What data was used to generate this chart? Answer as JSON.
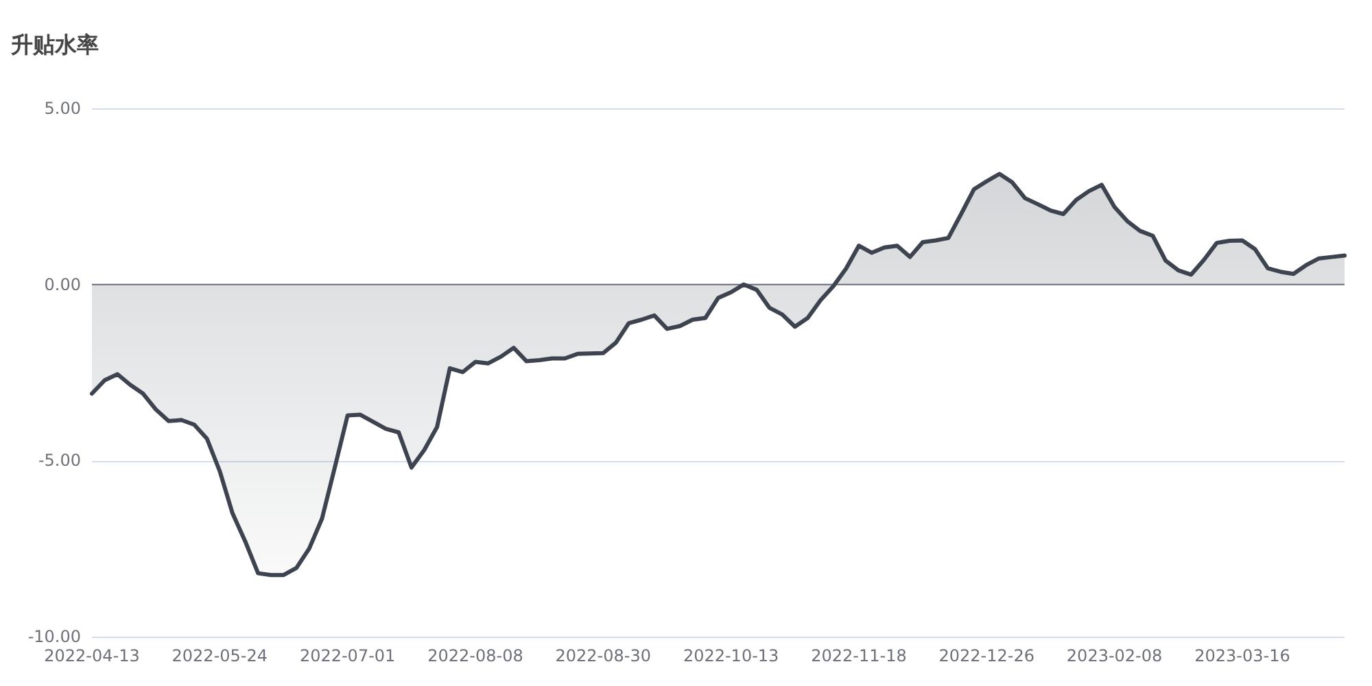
{
  "chart_data": {
    "type": "area",
    "title": "升贴水率",
    "categories": [
      "2022-04-13",
      null,
      null,
      null,
      null,
      null,
      null,
      null,
      null,
      null,
      "2022-05-24",
      null,
      null,
      null,
      null,
      null,
      null,
      null,
      null,
      null,
      "2022-07-01",
      null,
      null,
      null,
      null,
      null,
      null,
      null,
      null,
      null,
      "2022-08-08",
      null,
      null,
      null,
      null,
      null,
      null,
      null,
      null,
      null,
      "2022-08-30",
      null,
      null,
      null,
      null,
      null,
      null,
      null,
      null,
      null,
      "2022-10-13",
      null,
      null,
      null,
      null,
      null,
      null,
      null,
      null,
      null,
      "2022-11-18",
      null,
      null,
      null,
      null,
      null,
      null,
      null,
      null,
      null,
      "2022-12-26",
      null,
      null,
      null,
      null,
      null,
      null,
      null,
      null,
      null,
      "2023-02-08",
      null,
      null,
      null,
      null,
      null,
      null,
      null,
      null,
      null,
      "2023-03-16",
      null,
      null,
      null,
      null,
      null,
      null,
      null,
      null
    ],
    "values": [
      -3.1,
      -2.72,
      -2.55,
      -2.85,
      -3.1,
      -3.55,
      -3.88,
      -3.85,
      -3.98,
      -4.38,
      -5.3,
      -6.5,
      -7.3,
      -8.2,
      -8.25,
      -8.25,
      -8.05,
      -7.5,
      -6.65,
      -5.2,
      -3.72,
      -3.7,
      -3.9,
      -4.1,
      -4.2,
      -5.2,
      -4.7,
      -4.05,
      -2.38,
      -2.49,
      -2.2,
      -2.24,
      -2.05,
      -1.8,
      -2.18,
      -2.15,
      -2.1,
      -2.1,
      -1.97,
      -1.96,
      -1.95,
      -1.65,
      -1.1,
      -1.0,
      -0.88,
      -1.26,
      -1.18,
      -1.0,
      -0.95,
      -0.38,
      -0.22,
      0.0,
      -0.15,
      -0.66,
      -0.85,
      -1.2,
      -0.95,
      -0.45,
      -0.05,
      0.45,
      1.1,
      0.9,
      1.05,
      1.1,
      0.78,
      1.2,
      1.25,
      1.32,
      2.0,
      2.7,
      2.93,
      3.14,
      2.9,
      2.45,
      2.28,
      2.1,
      2.0,
      2.4,
      2.65,
      2.83,
      2.2,
      1.8,
      1.52,
      1.38,
      0.68,
      0.4,
      0.28,
      0.7,
      1.18,
      1.24,
      1.25,
      1.0,
      0.46,
      0.36,
      0.3,
      0.55,
      0.74,
      0.78,
      0.82
    ],
    "color": "#3d4450",
    "ylim": [
      -10,
      5
    ],
    "yticks": [
      {
        "value": 5,
        "label": "5.00"
      },
      {
        "value": 0,
        "label": "0.00"
      },
      {
        "value": -5,
        "label": "-5.00"
      },
      {
        "value": -10,
        "label": "-10.00"
      }
    ],
    "grid": "y"
  }
}
